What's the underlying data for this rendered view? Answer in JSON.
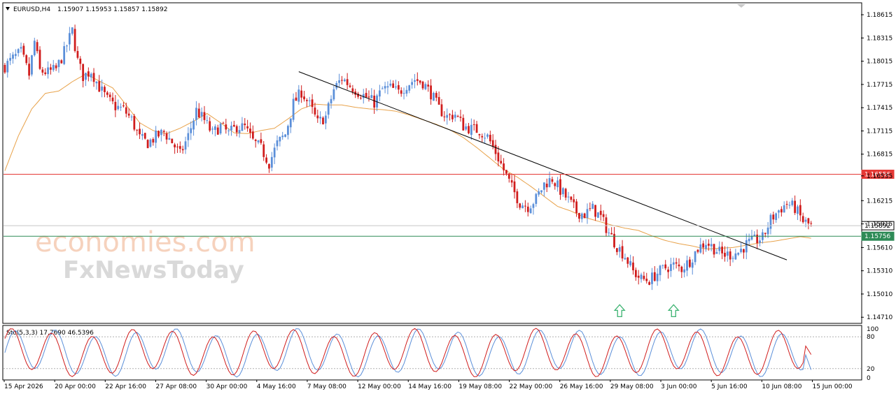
{
  "chart_data": [
    {
      "type": "candlestick",
      "symbol": "EURUSD,H4",
      "ohlc_header": "1.15907 1.15953 1.15857 1.15892",
      "y_ticks": [
        1.18615,
        1.18315,
        1.18015,
        1.17715,
        1.17415,
        1.17115,
        1.16815,
        1.16535,
        1.16215,
        1.15915,
        1.1561,
        1.1531,
        1.1501,
        1.1471
      ],
      "y_tick_labels": [
        "1.18615",
        "1.18315",
        "1.18015",
        "1.17715",
        "1.17415",
        "1.17115",
        "1.16815",
        "1.16535",
        "1.16215",
        "1.15915",
        "1.15610",
        "1.15310",
        "1.15010",
        "1.14710"
      ],
      "ylim": [
        1.1464,
        1.1876
      ],
      "x_labels": [
        "15 Apr 2026",
        "20 Apr 00:00",
        "22 Apr 16:00",
        "27 Apr 08:00",
        "30 Apr 00:00",
        "4 May 16:00",
        "7 May 08:00",
        "12 May 00:00",
        "14 May 16:00",
        "19 May 08:00",
        "22 May 00:00",
        "26 May 16:00",
        "29 May 08:00",
        "3 Jun 00:00",
        "5 Jun 16:00",
        "10 Jun 08:00",
        "15 Jun 00:00"
      ],
      "price_levels": [
        {
          "value": 1.16556,
          "label": "1.16556",
          "color": "#e53935"
        },
        {
          "value": 1.15892,
          "label": "1.15892",
          "color": "#c8c8c8"
        },
        {
          "value": 1.15756,
          "label": "1.15756",
          "color": "#2e8b57"
        }
      ],
      "trendline": {
        "from": {
          "bar": 109,
          "price": 1.1788
        },
        "to": {
          "bar": 290,
          "price": 1.1545
        }
      },
      "moving_average_color": "#e8a24a",
      "bull_color": "#5b8fd9",
      "bear_color": "#d01c1c",
      "arrows": [
        {
          "bar": 228,
          "price": 1.1479
        },
        {
          "bar": 248,
          "price": 1.1479
        }
      ],
      "arrow_color": "#3cb371",
      "close_path": [
        [
          0,
          1.1795
        ],
        [
          3,
          1.1805
        ],
        [
          6,
          1.1813
        ],
        [
          9,
          1.1784
        ],
        [
          11,
          1.1827
        ],
        [
          13,
          1.1789
        ],
        [
          16,
          1.1787
        ],
        [
          19,
          1.1791
        ],
        [
          22,
          1.1813
        ],
        [
          25,
          1.1841
        ],
        [
          27,
          1.1802
        ],
        [
          29,
          1.1782
        ],
        [
          32,
          1.1789
        ],
        [
          35,
          1.1768
        ],
        [
          38,
          1.1752
        ],
        [
          41,
          1.1743
        ],
        [
          44,
          1.1739
        ],
        [
          47,
          1.1726
        ],
        [
          50,
          1.1702
        ],
        [
          53,
          1.1696
        ],
        [
          56,
          1.1704
        ],
        [
          59,
          1.171
        ],
        [
          62,
          1.1697
        ],
        [
          65,
          1.1681
        ],
        [
          68,
          1.1705
        ],
        [
          71,
          1.1738
        ],
        [
          74,
          1.1725
        ],
        [
          77,
          1.1708
        ],
        [
          80,
          1.1718
        ],
        [
          83,
          1.1708
        ],
        [
          86,
          1.1717
        ],
        [
          89,
          1.1716
        ],
        [
          92,
          1.1698
        ],
        [
          95,
          1.1689
        ],
        [
          98,
          1.167
        ],
        [
          101,
          1.1695
        ],
        [
          104,
          1.1707
        ],
        [
          107,
          1.1747
        ],
        [
          110,
          1.1762
        ],
        [
          113,
          1.1745
        ],
        [
          116,
          1.1722
        ],
        [
          119,
          1.173
        ],
        [
          122,
          1.1765
        ],
        [
          125,
          1.178
        ],
        [
          128,
          1.177
        ],
        [
          131,
          1.1762
        ],
        [
          134,
          1.1755
        ],
        [
          137,
          1.1748
        ],
        [
          140,
          1.1765
        ],
        [
          143,
          1.1767
        ],
        [
          146,
          1.1761
        ],
        [
          149,
          1.1771
        ],
        [
          152,
          1.1778
        ],
        [
          155,
          1.1774
        ],
        [
          158,
          1.176
        ],
        [
          161,
          1.174
        ],
        [
          164,
          1.173
        ],
        [
          167,
          1.1733
        ],
        [
          170,
          1.1718
        ],
        [
          173,
          1.1714
        ],
        [
          176,
          1.1712
        ],
        [
          179,
          1.1704
        ],
        [
          182,
          1.1684
        ],
        [
          185,
          1.1661
        ],
        [
          188,
          1.1638
        ],
        [
          191,
          1.1619
        ],
        [
          194,
          1.1614
        ],
        [
          197,
          1.1624
        ],
        [
          200,
          1.1643
        ],
        [
          203,
          1.165
        ],
        [
          206,
          1.1635
        ],
        [
          209,
          1.1622
        ],
        [
          212,
          1.1607
        ],
        [
          215,
          1.1604
        ],
        [
          218,
          1.1611
        ],
        [
          221,
          1.16
        ],
        [
          224,
          1.158
        ],
        [
          227,
          1.1563
        ],
        [
          230,
          1.155
        ],
        [
          233,
          1.153
        ],
        [
          236,
          1.152
        ],
        [
          239,
          1.1519
        ],
        [
          242,
          1.1528
        ],
        [
          245,
          1.1535
        ],
        [
          248,
          1.1538
        ],
        [
          251,
          1.1534
        ],
        [
          254,
          1.1544
        ],
        [
          257,
          1.156
        ],
        [
          260,
          1.1568
        ],
        [
          263,
          1.156
        ],
        [
          266,
          1.1552
        ],
        [
          269,
          1.1552
        ],
        [
          272,
          1.1555
        ],
        [
          275,
          1.1565
        ],
        [
          278,
          1.157
        ],
        [
          281,
          1.1573
        ],
        [
          284,
          1.1597
        ],
        [
          287,
          1.1609
        ],
        [
          290,
          1.1618
        ],
        [
          293,
          1.1612
        ],
        [
          296,
          1.1595
        ],
        [
          299,
          1.1589
        ]
      ],
      "ma_path": [
        [
          0,
          1.166
        ],
        [
          5,
          1.1705
        ],
        [
          10,
          1.174
        ],
        [
          15,
          1.176
        ],
        [
          20,
          1.1763
        ],
        [
          25,
          1.1775
        ],
        [
          30,
          1.1785
        ],
        [
          35,
          1.1776
        ],
        [
          40,
          1.1767
        ],
        [
          45,
          1.1745
        ],
        [
          50,
          1.1722
        ],
        [
          55,
          1.1712
        ],
        [
          60,
          1.1708
        ],
        [
          65,
          1.1715
        ],
        [
          70,
          1.1724
        ],
        [
          75,
          1.1734
        ],
        [
          80,
          1.1722
        ],
        [
          85,
          1.1709
        ],
        [
          90,
          1.1708
        ],
        [
          95,
          1.1712
        ],
        [
          100,
          1.1715
        ],
        [
          105,
          1.1727
        ],
        [
          110,
          1.174
        ],
        [
          115,
          1.1746
        ],
        [
          120,
          1.1745
        ],
        [
          125,
          1.1745
        ],
        [
          130,
          1.1742
        ],
        [
          135,
          1.174
        ],
        [
          140,
          1.1739
        ],
        [
          145,
          1.1737
        ],
        [
          150,
          1.1732
        ],
        [
          155,
          1.1726
        ],
        [
          160,
          1.172
        ],
        [
          165,
          1.1713
        ],
        [
          170,
          1.1703
        ],
        [
          175,
          1.169
        ],
        [
          180,
          1.1676
        ],
        [
          185,
          1.1662
        ],
        [
          190,
          1.1652
        ],
        [
          195,
          1.164
        ],
        [
          200,
          1.1627
        ],
        [
          205,
          1.1614
        ],
        [
          210,
          1.1608
        ],
        [
          215,
          1.16
        ],
        [
          220,
          1.1595
        ],
        [
          225,
          1.159
        ],
        [
          230,
          1.1586
        ],
        [
          235,
          1.1583
        ],
        [
          240,
          1.1576
        ],
        [
          245,
          1.157
        ],
        [
          250,
          1.1566
        ],
        [
          255,
          1.1563
        ],
        [
          260,
          1.1559
        ],
        [
          265,
          1.156
        ],
        [
          270,
          1.1561
        ],
        [
          275,
          1.1564
        ],
        [
          280,
          1.1567
        ],
        [
          285,
          1.1569
        ],
        [
          290,
          1.1572
        ],
        [
          295,
          1.1575
        ],
        [
          299,
          1.1573
        ]
      ],
      "bar_count": 300
    },
    {
      "type": "line",
      "title": "Sto(5,3,3) 17.7690 46.5396",
      "y_ticks": [
        100,
        80,
        20,
        0
      ],
      "y_tick_labels": [
        "100",
        "80",
        "20",
        "0"
      ],
      "ylim": [
        0,
        100
      ],
      "levels": [
        80,
        20
      ],
      "series": [
        {
          "color": "#5b8fd9",
          "values_seed": 0.0
        },
        {
          "color": "#d01c1c",
          "values_seed": 0.55
        }
      ],
      "last_values": [
        17.769,
        46.5396
      ]
    }
  ],
  "watermark": {
    "line1": "economies.com",
    "line2": "FxNewsToday"
  }
}
